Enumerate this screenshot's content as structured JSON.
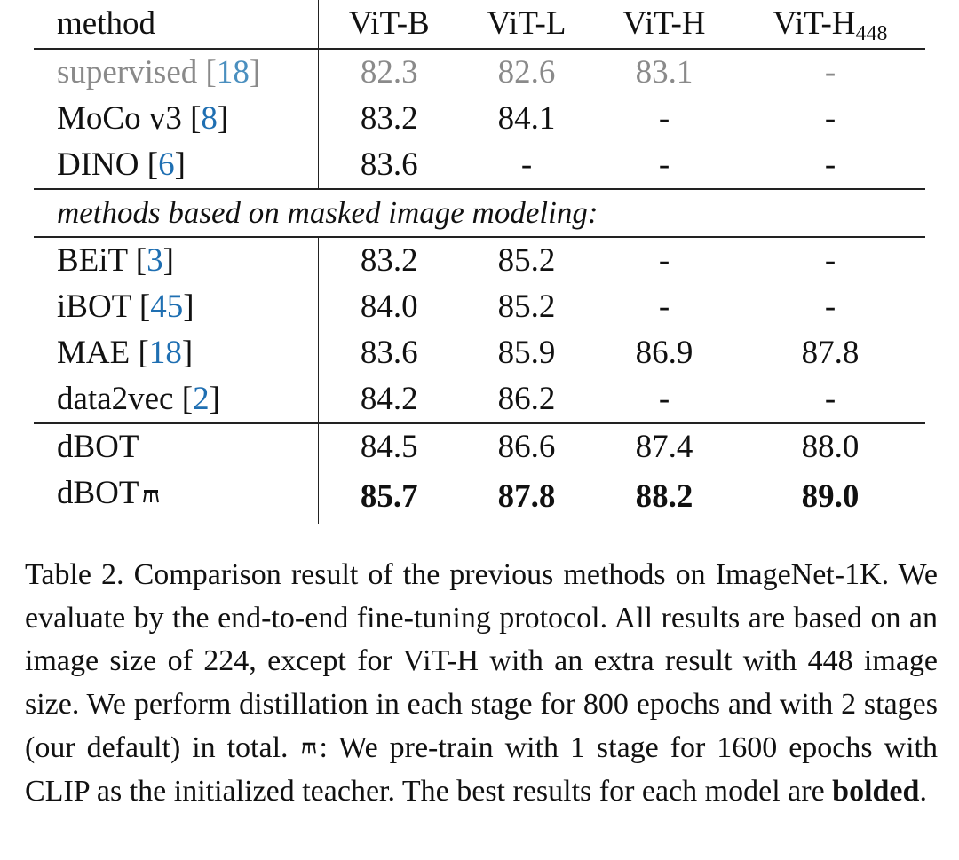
{
  "table": {
    "headers": [
      "method",
      "ViT-B",
      "ViT-L",
      "ViT-H",
      "ViT-H",
      "448"
    ],
    "rows_top": [
      {
        "method": "supervised ",
        "ref": "18",
        "vals": [
          "82.3",
          "82.6",
          "83.1",
          "-"
        ]
      },
      {
        "method": "MoCo v3 ",
        "ref": "8",
        "vals": [
          "83.2",
          "84.1",
          "-",
          "-"
        ]
      },
      {
        "method": "DINO ",
        "ref": "6",
        "vals": [
          "83.6",
          "-",
          "-",
          "-"
        ]
      }
    ],
    "section_label": "methods based on masked image modeling:",
    "rows_mim": [
      {
        "method": "BEiT ",
        "ref": "3",
        "vals": [
          "83.2",
          "85.2",
          "-",
          "-"
        ]
      },
      {
        "method": "iBOT ",
        "ref": "45",
        "vals": [
          "84.0",
          "85.2",
          "-",
          "-"
        ]
      },
      {
        "method": "MAE ",
        "ref": "18",
        "vals": [
          "83.6",
          "85.9",
          "86.9",
          "87.8"
        ]
      },
      {
        "method": "data2vec ",
        "ref": "2",
        "vals": [
          "84.2",
          "86.2",
          "-",
          "-"
        ]
      }
    ],
    "rows_ours": [
      {
        "method": "dBOT",
        "vals": [
          "84.5",
          "86.6",
          "87.4",
          "88.0"
        ]
      },
      {
        "method": "dBOT",
        "vals": [
          "85.7",
          "87.8",
          "88.2",
          "89.0"
        ]
      }
    ]
  },
  "caption": {
    "part1": "Table 2. Comparison result of the previous methods on ImageNet-1K. We evaluate by the end-to-end fine-tuning protocol. All results are based on an image size of 224, except for ViT-H with an extra result with 448 image size. We perform distillation in each stage for 800 epochs and with 2 stages (our default) in total. ",
    "part2": ": We pre-train with 1 stage for 1600 epochs with CLIP as the initialized teacher. The best results for each model are ",
    "bold_word": "bolded",
    "end": "."
  }
}
